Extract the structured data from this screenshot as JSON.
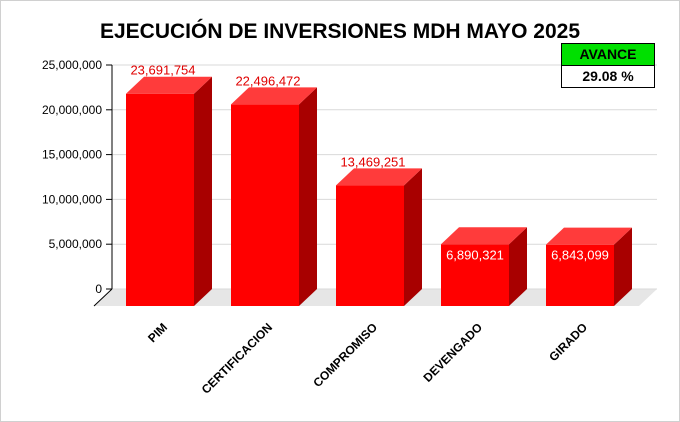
{
  "chart_data": {
    "type": "bar",
    "title": "EJECUCIÓN DE INVERSIONES MDH MAYO 2025",
    "categories": [
      "PIM",
      "CERTIFICACION",
      "COMPROMISO",
      "DEVENGADO",
      "GIRADO"
    ],
    "values": [
      23691754,
      22496472,
      13469251,
      6890321,
      6843099
    ],
    "data_labels": [
      "23,691,754",
      "22,496,472",
      "13,469,251",
      "6,890,321",
      "6,843,099"
    ],
    "ylim": [
      0,
      25000000
    ],
    "yticks": [
      0,
      5000000,
      10000000,
      15000000,
      20000000,
      25000000
    ],
    "ytick_labels": [
      "0",
      "5,000,000",
      "10,000,000",
      "15,000,000",
      "20,000,000",
      "25,000,000"
    ],
    "grid": true,
    "bar_color": "#ff0000",
    "bar_side_color": "#a80000",
    "bar_top_color": "#ff3b3b",
    "label_color_outside": "#e00000",
    "label_color_inside": "#ffffff"
  },
  "avance": {
    "label": "AVANCE",
    "value": "29.08 %",
    "color": "#00e000"
  }
}
